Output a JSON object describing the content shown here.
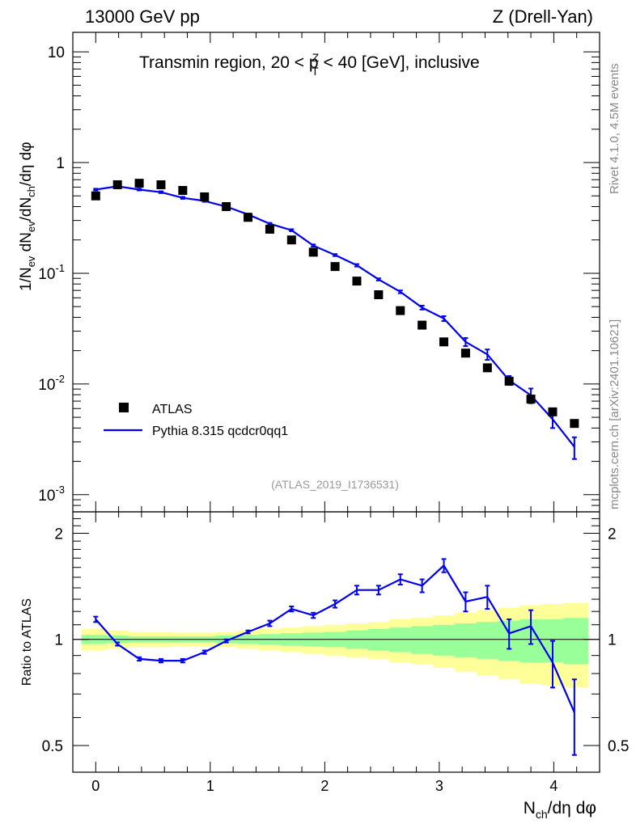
{
  "header": {
    "left": "13000 GeV pp",
    "right": "Z (Drell-Yan)"
  },
  "title": {
    "main": "Transmin region, 20 < p",
    "sup": "Z",
    "sub": "T",
    "rest": " < 40 [GeV], inclusive"
  },
  "side_labels": {
    "rivet": "Rivet 4.1.0,  4.5M events",
    "mcplots": "mcplots.cern.ch [arXiv:2401.10621]"
  },
  "analysis_id": "(ATLAS_2019_I1736531)",
  "legend": {
    "data_label": "ATLAS",
    "mc_label": "Pythia 8.315 qcdcr0qq1"
  },
  "colors": {
    "mc": "#0000ee",
    "data": "#000000",
    "band_inner": "#99ff99",
    "band_outer": "#ffff99"
  },
  "axes": {
    "main_ylabel": "1/N_ev dN_ev/dN_ch/dη dφ",
    "ratio_ylabel": "Ratio to ATLAS",
    "xlabel": "N_ch/dη dφ",
    "main_yticks": [
      {
        "label": "10",
        "exp": "-3",
        "value": 0.001
      },
      {
        "label": "10",
        "exp": "-2",
        "value": 0.01
      },
      {
        "label": "10",
        "exp": "-1",
        "value": 0.1
      },
      {
        "label": "1",
        "exp": "",
        "value": 1
      },
      {
        "label": "10",
        "exp": "",
        "value": 10
      }
    ],
    "ratio_yticks": [
      {
        "label": "0.5",
        "value": 0.5
      },
      {
        "label": "1",
        "value": 1
      },
      {
        "label": "2",
        "value": 2
      }
    ],
    "xticks": [
      {
        "label": "0",
        "value": 0
      },
      {
        "label": "1",
        "value": 1
      },
      {
        "label": "2",
        "value": 2
      },
      {
        "label": "3",
        "value": 3
      },
      {
        "label": "4",
        "value": 4
      }
    ]
  },
  "chart_data": {
    "type": "scatter",
    "title": "Transmin region, 20 < p_T^Z < 40 [GeV], inclusive",
    "xlabel": "N_ch/dη dφ",
    "ylabel": "1/N_ev dN_ev/dN_ch/dη dφ",
    "ylabel_ratio": "Ratio to ATLAS",
    "xlim": [
      -0.2,
      4.4
    ],
    "ylim_main": [
      0.0007,
      15
    ],
    "yscale_main": "log",
    "ylim_ratio": [
      0.42,
      2.3
    ],
    "yscale_ratio": "log",
    "x": [
      0.0,
      0.19,
      0.38,
      0.57,
      0.76,
      0.95,
      1.14,
      1.33,
      1.52,
      1.71,
      1.9,
      2.09,
      2.28,
      2.47,
      2.66,
      2.85,
      3.04,
      3.23,
      3.42,
      3.61,
      3.8,
      3.99,
      4.18
    ],
    "series": [
      {
        "name": "ATLAS",
        "style": "markers",
        "values": [
          0.5,
          0.63,
          0.65,
          0.63,
          0.56,
          0.49,
          0.4,
          0.32,
          0.25,
          0.2,
          0.155,
          0.115,
          0.085,
          0.064,
          0.046,
          0.034,
          0.024,
          0.019,
          0.014,
          0.0106,
          0.0073,
          0.0056,
          0.0044
        ]
      },
      {
        "name": "Pythia 8.315 qcdcr0qq1",
        "style": "line",
        "values": [
          0.57,
          0.61,
          0.57,
          0.54,
          0.48,
          0.45,
          0.4,
          0.34,
          0.28,
          0.245,
          0.178,
          0.146,
          0.118,
          0.088,
          0.068,
          0.049,
          0.039,
          0.024,
          0.0185,
          0.0108,
          0.0079,
          0.0048,
          0.0027
        ],
        "errors": [
          0.01,
          0.01,
          0.01,
          0.01,
          0.01,
          0.008,
          0.007,
          0.006,
          0.005,
          0.005,
          0.004,
          0.003,
          0.003,
          0.002,
          0.002,
          0.002,
          0.002,
          0.002,
          0.002,
          0.001,
          0.0012,
          0.0008,
          0.0006
        ]
      }
    ],
    "ratio": {
      "values": [
        1.14,
        0.97,
        0.88,
        0.87,
        0.87,
        0.92,
        0.99,
        1.05,
        1.11,
        1.22,
        1.17,
        1.26,
        1.38,
        1.38,
        1.48,
        1.42,
        1.62,
        1.28,
        1.32,
        1.04,
        1.09,
        0.86,
        0.62
      ],
      "errors": [
        0.02,
        0.01,
        0.01,
        0.01,
        0.01,
        0.01,
        0.01,
        0.01,
        0.02,
        0.02,
        0.02,
        0.03,
        0.04,
        0.04,
        0.05,
        0.06,
        0.07,
        0.08,
        0.1,
        0.1,
        0.12,
        0.13,
        0.15
      ],
      "band_inner_half": [
        0.03,
        0.025,
        0.02,
        0.02,
        0.02,
        0.02,
        0.025,
        0.03,
        0.035,
        0.04,
        0.045,
        0.05,
        0.06,
        0.07,
        0.08,
        0.09,
        0.1,
        0.11,
        0.12,
        0.13,
        0.14,
        0.14,
        0.15
      ],
      "band_outer_half": [
        0.07,
        0.06,
        0.05,
        0.05,
        0.045,
        0.045,
        0.05,
        0.06,
        0.07,
        0.08,
        0.09,
        0.1,
        0.11,
        0.12,
        0.14,
        0.15,
        0.17,
        0.19,
        0.21,
        0.23,
        0.25,
        0.26,
        0.27
      ]
    }
  }
}
